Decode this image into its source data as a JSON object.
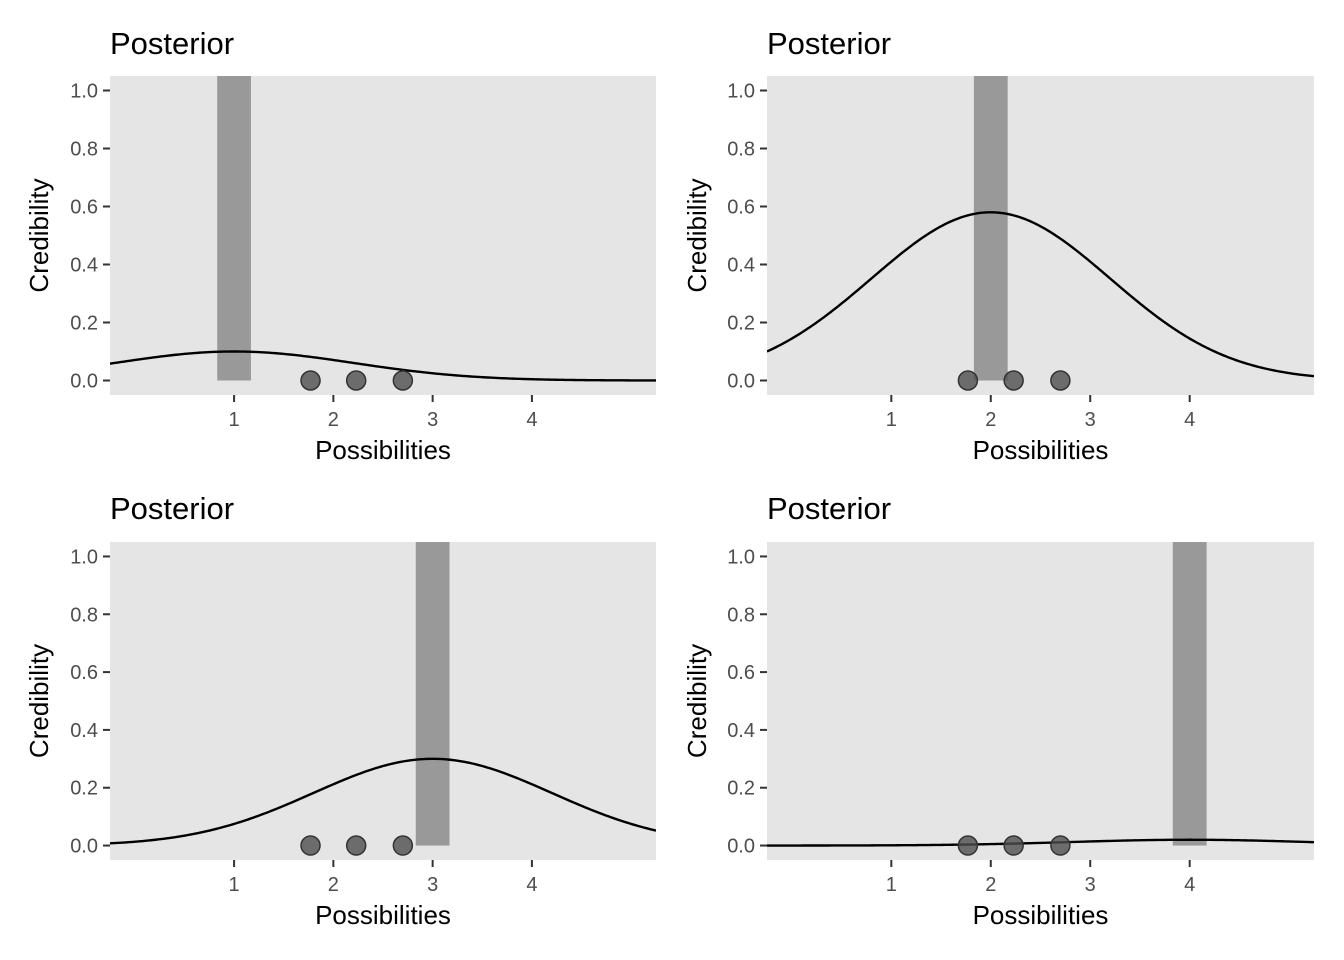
{
  "chart_data": [
    {
      "type": "line",
      "title": "Posterior",
      "xlabel": "Possibilities",
      "ylabel": "Credibility",
      "xlim": [
        -0.25,
        5.25
      ],
      "ylim": [
        -0.05,
        1.05
      ],
      "x_ticks": [
        "1",
        "2",
        "3",
        "4"
      ],
      "y_ticks": [
        "0.0",
        "0.2",
        "0.4",
        "0.6",
        "0.8",
        "1.0"
      ],
      "grid": false,
      "bar": {
        "x": 1,
        "width": 0.34,
        "value": 1.05
      },
      "curve": {
        "mean": 1,
        "sd": 1.2,
        "peak": 0.1
      },
      "points": [
        {
          "x": 1.77,
          "y": 0
        },
        {
          "x": 2.23,
          "y": 0
        },
        {
          "x": 2.7,
          "y": 0
        }
      ]
    },
    {
      "type": "line",
      "title": "Posterior",
      "xlabel": "Possibilities",
      "ylabel": "Credibility",
      "xlim": [
        -0.25,
        5.25
      ],
      "ylim": [
        -0.05,
        1.05
      ],
      "x_ticks": [
        "1",
        "2",
        "3",
        "4"
      ],
      "y_ticks": [
        "0.0",
        "0.2",
        "0.4",
        "0.6",
        "0.8",
        "1.0"
      ],
      "grid": false,
      "bar": {
        "x": 2,
        "width": 0.34,
        "value": 1.05
      },
      "curve": {
        "mean": 2,
        "sd": 1.2,
        "peak": 0.58
      },
      "points": [
        {
          "x": 1.77,
          "y": 0
        },
        {
          "x": 2.23,
          "y": 0
        },
        {
          "x": 2.7,
          "y": 0
        }
      ]
    },
    {
      "type": "line",
      "title": "Posterior",
      "xlabel": "Possibilities",
      "ylabel": "Credibility",
      "xlim": [
        -0.25,
        5.25
      ],
      "ylim": [
        -0.05,
        1.05
      ],
      "x_ticks": [
        "1",
        "2",
        "3",
        "4"
      ],
      "y_ticks": [
        "0.0",
        "0.2",
        "0.4",
        "0.6",
        "0.8",
        "1.0"
      ],
      "grid": false,
      "bar": {
        "x": 3,
        "width": 0.34,
        "value": 1.05
      },
      "curve": {
        "mean": 3,
        "sd": 1.2,
        "peak": 0.3
      },
      "points": [
        {
          "x": 1.77,
          "y": 0
        },
        {
          "x": 2.23,
          "y": 0
        },
        {
          "x": 2.7,
          "y": 0
        }
      ]
    },
    {
      "type": "line",
      "title": "Posterior",
      "xlabel": "Possibilities",
      "ylabel": "Credibility",
      "xlim": [
        -0.25,
        5.25
      ],
      "ylim": [
        -0.05,
        1.05
      ],
      "x_ticks": [
        "1",
        "2",
        "3",
        "4"
      ],
      "y_ticks": [
        "0.0",
        "0.2",
        "0.4",
        "0.6",
        "0.8",
        "1.0"
      ],
      "grid": false,
      "bar": {
        "x": 4,
        "width": 0.34,
        "value": 1.05
      },
      "curve": {
        "mean": 4,
        "sd": 1.2,
        "peak": 0.02
      },
      "points": [
        {
          "x": 1.77,
          "y": 0
        },
        {
          "x": 2.23,
          "y": 0
        },
        {
          "x": 2.7,
          "y": 0
        }
      ]
    }
  ]
}
